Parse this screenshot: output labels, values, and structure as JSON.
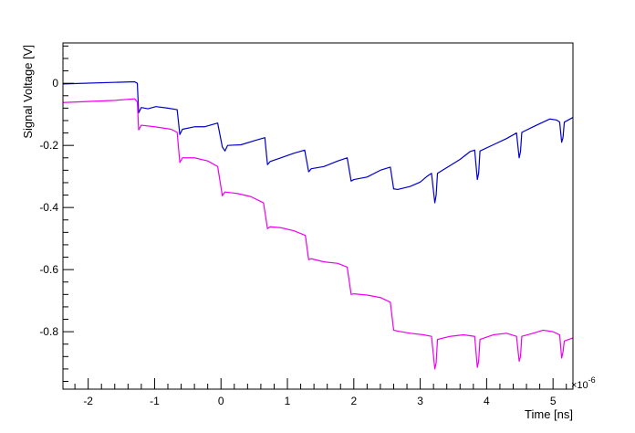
{
  "chart_data": {
    "type": "line",
    "xlabel": "Time [ns]",
    "ylabel": "Signal Voltage [V]",
    "x_multiplier_label": "×10",
    "x_multiplier_exponent": "-6",
    "xlim": [
      -2.38,
      5.3
    ],
    "ylim": [
      -0.985,
      0.13
    ],
    "x_ticks": [
      -2,
      -1,
      0,
      1,
      2,
      3,
      4,
      5
    ],
    "x_tick_labels": [
      "-2",
      "-1",
      "0",
      "1",
      "2",
      "3",
      "4",
      "5"
    ],
    "y_ticks": [
      0,
      -0.2,
      -0.4,
      -0.6,
      -0.8
    ],
    "y_tick_labels": [
      "0",
      "-0.2",
      "-0.4",
      "-0.6",
      "-0.8"
    ],
    "grid": false,
    "series": [
      {
        "color": "#0000cc",
        "points": [
          [
            -2.38,
            -0.002
          ],
          [
            -1.3,
            0.005
          ],
          [
            -1.26,
            0.0
          ],
          [
            -1.24,
            -0.095
          ],
          [
            -1.2,
            -0.078
          ],
          [
            -1.1,
            -0.082
          ],
          [
            -0.98,
            -0.075
          ],
          [
            -0.8,
            -0.08
          ],
          [
            -0.66,
            -0.085
          ],
          [
            -0.62,
            -0.165
          ],
          [
            -0.58,
            -0.148
          ],
          [
            -0.4,
            -0.14
          ],
          [
            -0.25,
            -0.14
          ],
          [
            -0.05,
            -0.128
          ],
          [
            0.02,
            -0.205
          ],
          [
            0.06,
            -0.218
          ],
          [
            0.1,
            -0.2
          ],
          [
            0.3,
            -0.198
          ],
          [
            0.5,
            -0.185
          ],
          [
            0.66,
            -0.175
          ],
          [
            0.7,
            -0.262
          ],
          [
            0.74,
            -0.252
          ],
          [
            0.9,
            -0.24
          ],
          [
            1.1,
            -0.225
          ],
          [
            1.26,
            -0.215
          ],
          [
            1.32,
            -0.285
          ],
          [
            1.36,
            -0.275
          ],
          [
            1.55,
            -0.268
          ],
          [
            1.76,
            -0.25
          ],
          [
            1.9,
            -0.24
          ],
          [
            1.96,
            -0.315
          ],
          [
            2.0,
            -0.31
          ],
          [
            2.2,
            -0.302
          ],
          [
            2.4,
            -0.28
          ],
          [
            2.55,
            -0.27
          ],
          [
            2.6,
            -0.34
          ],
          [
            2.66,
            -0.342
          ],
          [
            2.85,
            -0.332
          ],
          [
            3.0,
            -0.318
          ],
          [
            3.1,
            -0.3
          ],
          [
            3.17,
            -0.29
          ],
          [
            3.22,
            -0.385
          ],
          [
            3.24,
            -0.36
          ],
          [
            3.26,
            -0.29
          ],
          [
            3.45,
            -0.265
          ],
          [
            3.6,
            -0.245
          ],
          [
            3.75,
            -0.22
          ],
          [
            3.82,
            -0.215
          ],
          [
            3.86,
            -0.31
          ],
          [
            3.88,
            -0.29
          ],
          [
            3.9,
            -0.218
          ],
          [
            4.1,
            -0.198
          ],
          [
            4.3,
            -0.178
          ],
          [
            4.45,
            -0.16
          ],
          [
            4.49,
            -0.24
          ],
          [
            4.51,
            -0.22
          ],
          [
            4.53,
            -0.158
          ],
          [
            4.7,
            -0.14
          ],
          [
            4.85,
            -0.125
          ],
          [
            4.95,
            -0.115
          ],
          [
            5.05,
            -0.118
          ],
          [
            5.1,
            -0.125
          ],
          [
            5.13,
            -0.19
          ],
          [
            5.15,
            -0.175
          ],
          [
            5.17,
            -0.125
          ],
          [
            5.3,
            -0.11
          ]
        ]
      },
      {
        "color": "#ee00ee",
        "points": [
          [
            -2.38,
            -0.062
          ],
          [
            -1.6,
            -0.055
          ],
          [
            -1.3,
            -0.05
          ],
          [
            -1.26,
            -0.06
          ],
          [
            -1.24,
            -0.15
          ],
          [
            -1.2,
            -0.135
          ],
          [
            -1.0,
            -0.14
          ],
          [
            -0.75,
            -0.148
          ],
          [
            -0.66,
            -0.158
          ],
          [
            -0.62,
            -0.255
          ],
          [
            -0.58,
            -0.24
          ],
          [
            -0.4,
            -0.24
          ],
          [
            -0.2,
            -0.25
          ],
          [
            -0.05,
            -0.268
          ],
          [
            0.02,
            -0.362
          ],
          [
            0.06,
            -0.35
          ],
          [
            0.25,
            -0.355
          ],
          [
            0.45,
            -0.365
          ],
          [
            0.64,
            -0.385
          ],
          [
            0.7,
            -0.468
          ],
          [
            0.74,
            -0.462
          ],
          [
            0.9,
            -0.465
          ],
          [
            1.1,
            -0.475
          ],
          [
            1.27,
            -0.49
          ],
          [
            1.32,
            -0.568
          ],
          [
            1.36,
            -0.565
          ],
          [
            1.55,
            -0.575
          ],
          [
            1.76,
            -0.58
          ],
          [
            1.9,
            -0.592
          ],
          [
            1.96,
            -0.68
          ],
          [
            2.0,
            -0.678
          ],
          [
            2.2,
            -0.682
          ],
          [
            2.4,
            -0.69
          ],
          [
            2.55,
            -0.705
          ],
          [
            2.6,
            -0.795
          ],
          [
            2.66,
            -0.798
          ],
          [
            2.85,
            -0.805
          ],
          [
            3.05,
            -0.81
          ],
          [
            3.17,
            -0.815
          ],
          [
            3.22,
            -0.92
          ],
          [
            3.24,
            -0.9
          ],
          [
            3.26,
            -0.825
          ],
          [
            3.45,
            -0.815
          ],
          [
            3.65,
            -0.81
          ],
          [
            3.82,
            -0.815
          ],
          [
            3.86,
            -0.915
          ],
          [
            3.88,
            -0.895
          ],
          [
            3.9,
            -0.825
          ],
          [
            4.1,
            -0.81
          ],
          [
            4.3,
            -0.805
          ],
          [
            4.45,
            -0.815
          ],
          [
            4.49,
            -0.895
          ],
          [
            4.51,
            -0.88
          ],
          [
            4.53,
            -0.815
          ],
          [
            4.7,
            -0.805
          ],
          [
            4.85,
            -0.795
          ],
          [
            5.0,
            -0.8
          ],
          [
            5.1,
            -0.81
          ],
          [
            5.13,
            -0.885
          ],
          [
            5.15,
            -0.865
          ],
          [
            5.17,
            -0.83
          ],
          [
            5.3,
            -0.82
          ]
        ]
      }
    ]
  }
}
